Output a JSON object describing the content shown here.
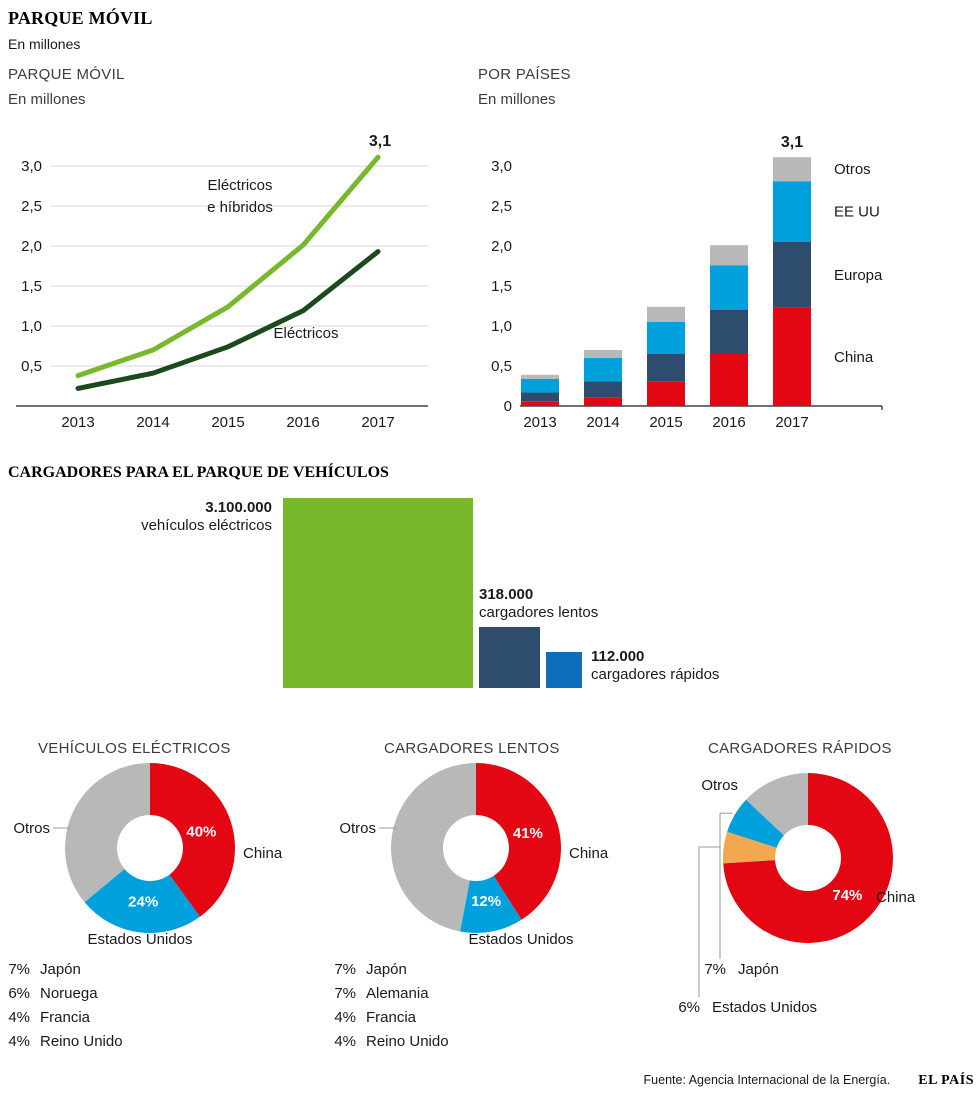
{
  "page": {
    "title": "PARQUE MÓVIL",
    "subtitle": "En millones",
    "chargers_title": "CARGADORES PARA EL PARQUE DE VEHÍCULOS",
    "footer": {
      "source": "Fuente: Agencia Internacional de la Energía.",
      "brand": "EL PAÍS"
    }
  },
  "colors": {
    "light_green": "#77b82c",
    "dark_green": "#1c4a1e",
    "red": "#e30613",
    "navy": "#2e4d6e",
    "cyan": "#00a0dd",
    "blue": "#0c6eb8",
    "gray": "#b8b8b8",
    "orange": "#f1a84e",
    "text": "#1a1a1a",
    "grid": "#d9d9d9",
    "leader": "#999999"
  },
  "chart_data": [
    {
      "id": "parque-movil-line",
      "type": "line",
      "title": "PARQUE MÓVIL",
      "subtitle": "En millones",
      "x": [
        "2013",
        "2014",
        "2015",
        "2016",
        "2017"
      ],
      "series": [
        {
          "name": "Eléctricos e híbridos",
          "name_lines": [
            "Eléctricos",
            "e híbridos"
          ],
          "color_key": "light_green",
          "values": [
            0.38,
            0.7,
            1.24,
            2.01,
            3.11
          ]
        },
        {
          "name": "Eléctricos",
          "name_lines": [
            "Eléctricos"
          ],
          "color_key": "dark_green",
          "values": [
            0.22,
            0.41,
            0.74,
            1.19,
            1.93
          ]
        }
      ],
      "ylim": [
        0,
        3.2
      ],
      "yticks": [
        0.5,
        1.0,
        1.5,
        2.0,
        2.5,
        3.0
      ],
      "ytick_labels": [
        "0,5",
        "1,0",
        "1,5",
        "2,0",
        "2,5",
        "3,0"
      ],
      "annotation": "3,1",
      "grid": true,
      "legend_position": "inline"
    },
    {
      "id": "por-paises-bars",
      "type": "stacked_bar",
      "title": "POR PAÍSES",
      "subtitle": "En millones",
      "categories": [
        "2013",
        "2014",
        "2015",
        "2016",
        "2017"
      ],
      "series": [
        {
          "name": "China",
          "color_key": "red",
          "values": [
            0.06,
            0.11,
            0.31,
            0.65,
            1.23
          ]
        },
        {
          "name": "Europa",
          "color_key": "navy",
          "values": [
            0.11,
            0.2,
            0.34,
            0.55,
            0.82
          ]
        },
        {
          "name": "EE UU",
          "color_key": "cyan",
          "values": [
            0.17,
            0.29,
            0.4,
            0.56,
            0.76
          ]
        },
        {
          "name": "Otros",
          "color_key": "gray",
          "values": [
            0.05,
            0.1,
            0.19,
            0.25,
            0.3
          ]
        }
      ],
      "ylim": [
        0,
        3.2
      ],
      "yticks": [
        0,
        0.5,
        1.0,
        1.5,
        2.0,
        2.5,
        3.0
      ],
      "ytick_labels": [
        "0",
        "0,5",
        "1,0",
        "1,5",
        "2,0",
        "2,5",
        "3,0"
      ],
      "annotation": "3,1",
      "grid": false,
      "legend_position": "right"
    },
    {
      "id": "cargadores-squares",
      "type": "bar",
      "title": "CARGADORES PARA EL PARQUE DE VEHÍCULOS",
      "items": [
        {
          "value": 3100000,
          "value_label": "3.100.000",
          "caption": "vehículos eléctricos",
          "color_key": "light_green",
          "label_position": "left"
        },
        {
          "value": 318000,
          "value_label": "318.000",
          "caption": "cargadores lentos",
          "color_key": "navy",
          "label_position": "top"
        },
        {
          "value": 112000,
          "value_label": "112.000",
          "caption": "cargadores rápidos",
          "color_key": "blue",
          "label_position": "right"
        }
      ]
    },
    {
      "id": "donut-vehiculos-electricos",
      "type": "pie",
      "title": "VEHÍCULOS ELÉCTRICOS",
      "slices": [
        {
          "name": "China",
          "value": 40,
          "pct_label": "40%",
          "color_key": "red",
          "label_pos": "right"
        },
        {
          "name": "Estados Unidos",
          "value": 24,
          "pct_label": "24%",
          "color_key": "cyan",
          "label_pos": "bottom"
        },
        {
          "name": "Otros",
          "value": 36,
          "color_key": "gray",
          "label_pos": "left"
        }
      ],
      "breakdown": [
        {
          "pct": "7%",
          "name": "Japón"
        },
        {
          "pct": "6%",
          "name": "Noruega"
        },
        {
          "pct": "4%",
          "name": "Francia"
        },
        {
          "pct": "4%",
          "name": "Reino Unido"
        }
      ]
    },
    {
      "id": "donut-cargadores-lentos",
      "type": "pie",
      "title": "CARGADORES LENTOS",
      "slices": [
        {
          "name": "China",
          "value": 41,
          "pct_label": "41%",
          "color_key": "red",
          "label_pos": "right"
        },
        {
          "name": "Estados Unidos",
          "value": 12,
          "pct_label": "12%",
          "color_key": "cyan",
          "label_pos": "bottom-right"
        },
        {
          "name": "Otros",
          "value": 47,
          "color_key": "gray",
          "label_pos": "left"
        }
      ],
      "breakdown": [
        {
          "pct": "7%",
          "name": "Japón"
        },
        {
          "pct": "7%",
          "name": "Alemania"
        },
        {
          "pct": "4%",
          "name": "Francia"
        },
        {
          "pct": "4%",
          "name": "Reino Unido"
        }
      ]
    },
    {
      "id": "donut-cargadores-rapidos",
      "type": "pie",
      "title": "CARGADORES RÁPIDOS",
      "slices": [
        {
          "name": "China",
          "value": 74,
          "pct_label": "74%",
          "color_key": "red",
          "label_pos": "right-low"
        },
        {
          "name": "Estados Unidos",
          "value": 6,
          "color_key": "orange"
        },
        {
          "name": "Japón",
          "value": 7,
          "color_key": "cyan"
        },
        {
          "name": "Otros",
          "value": 13,
          "color_key": "gray",
          "label_pos": "top-left"
        }
      ],
      "breakdown": [
        {
          "pct": "7%",
          "name": "Japón"
        },
        {
          "pct": "6%",
          "name": "Estados Unidos"
        }
      ]
    }
  ]
}
